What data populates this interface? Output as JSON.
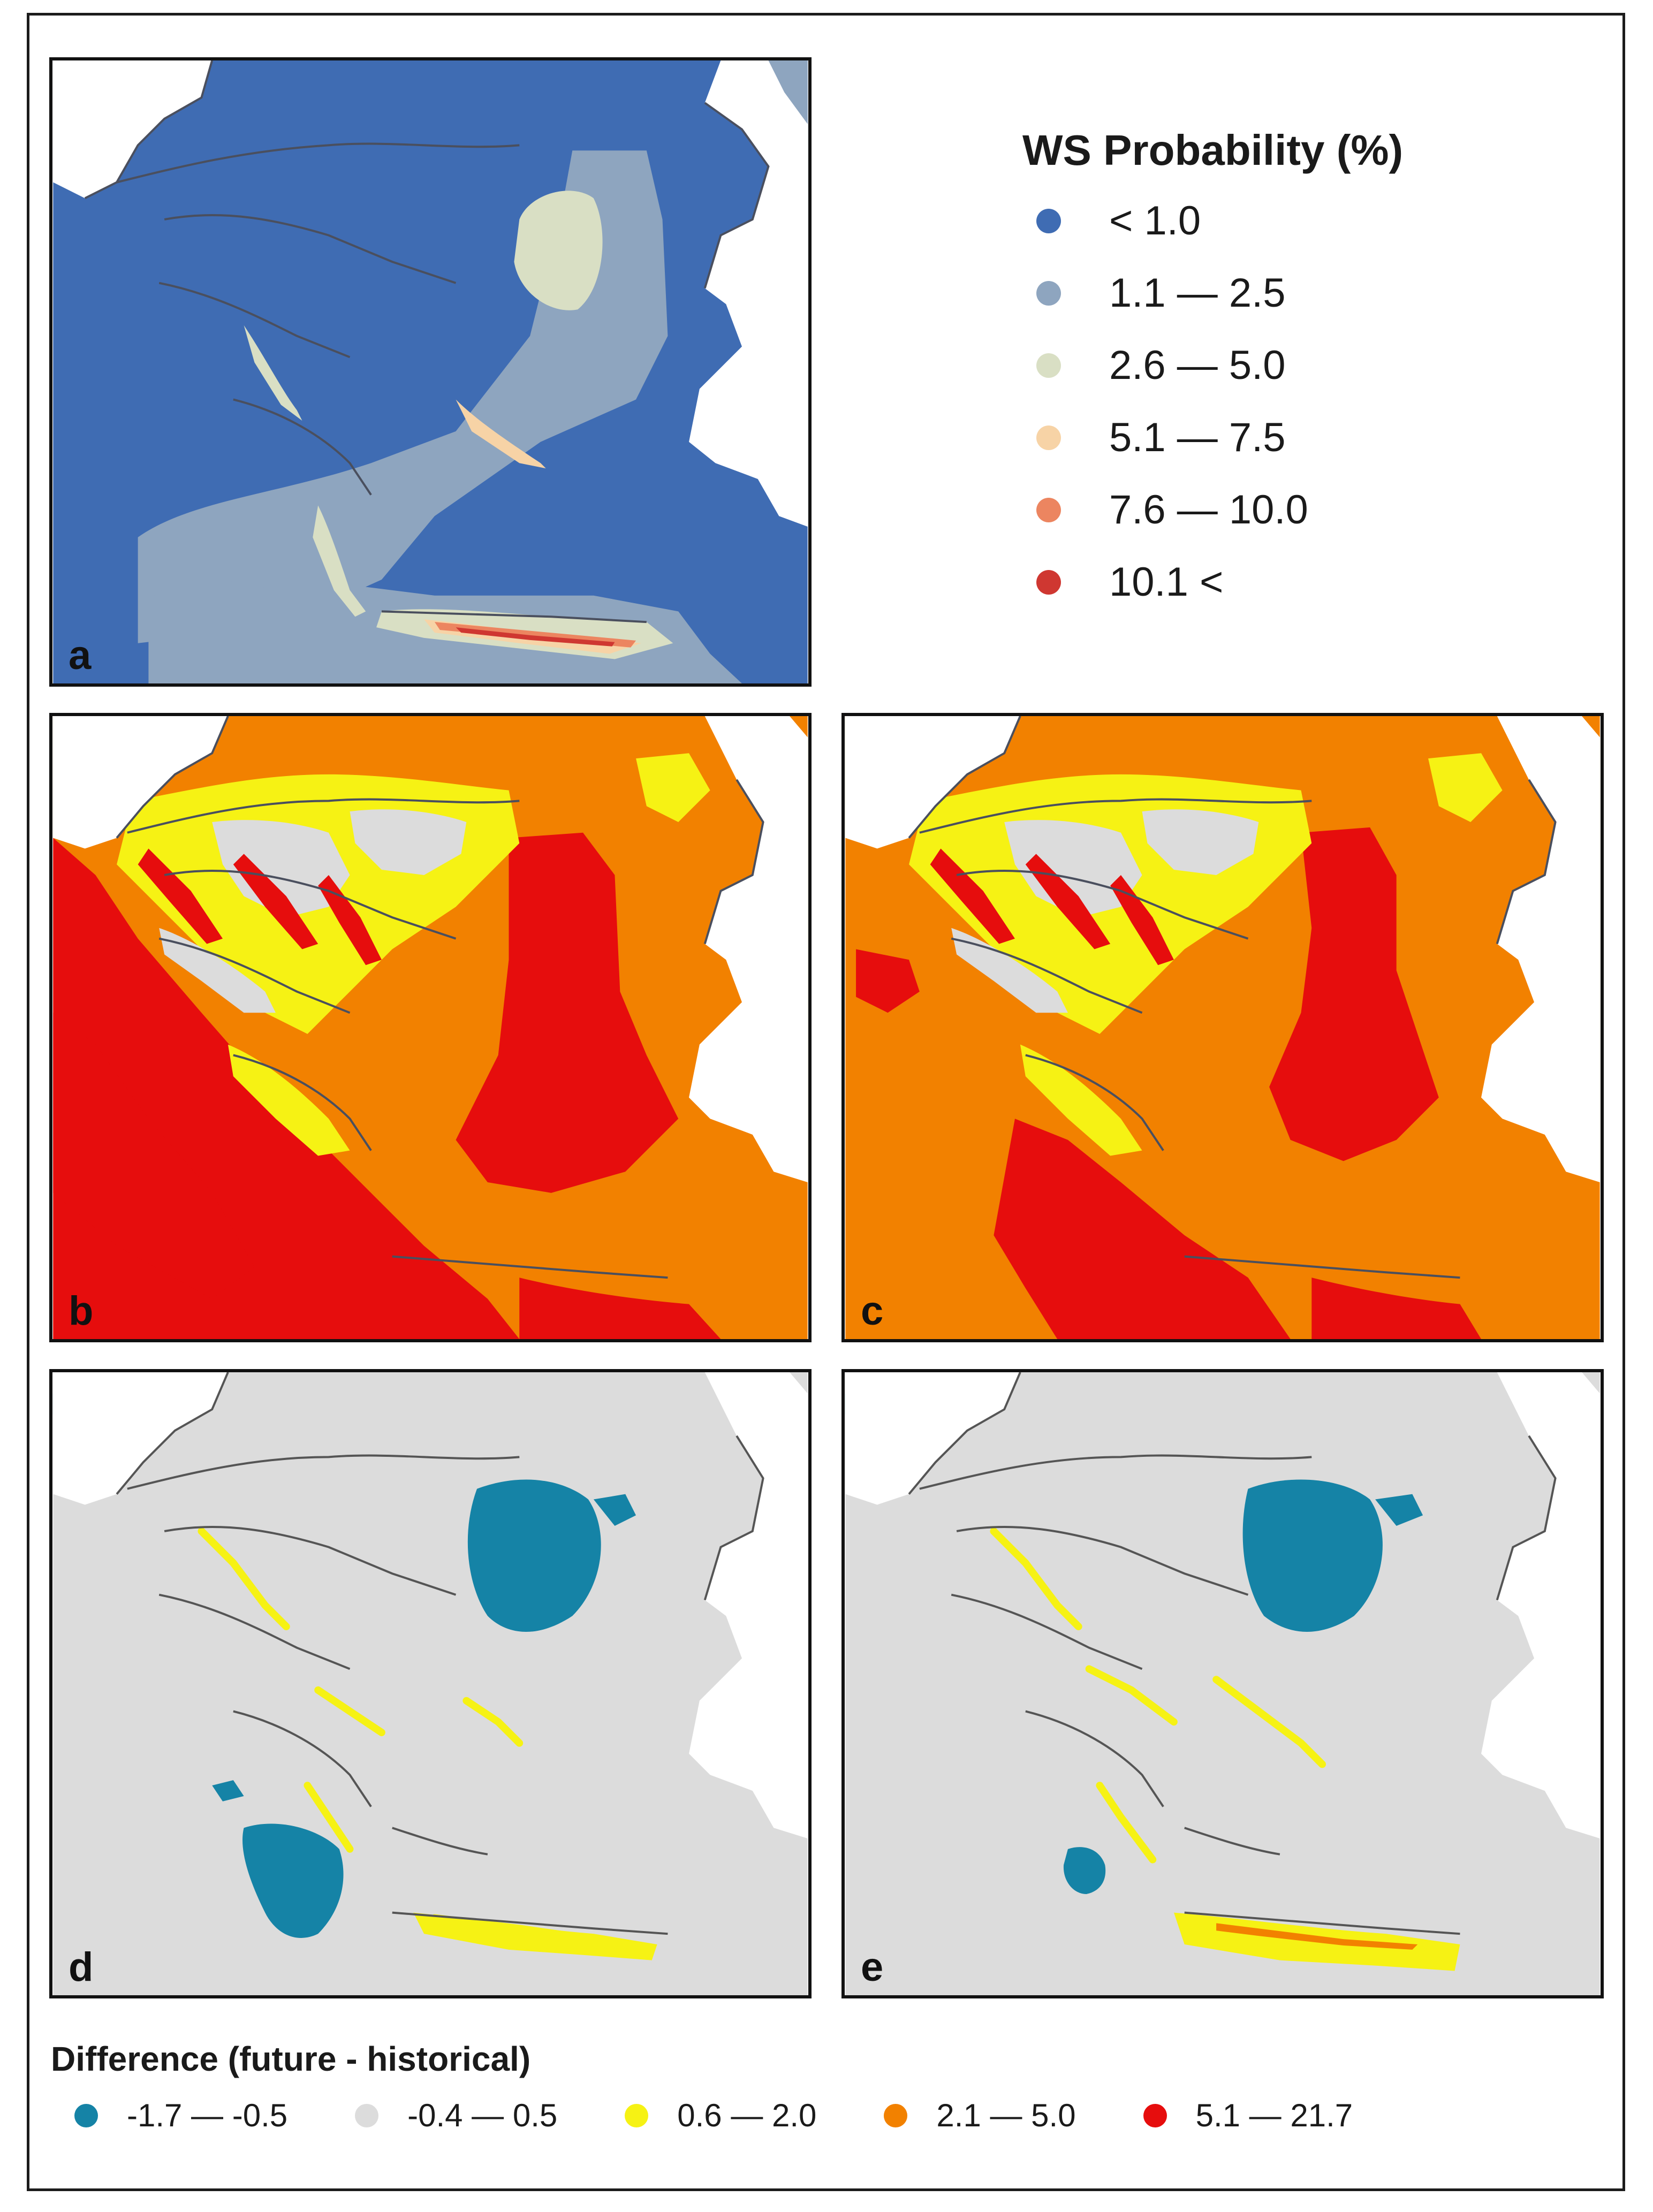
{
  "top_legend": {
    "title": "WS Probability (%)",
    "items": [
      {
        "label": "< 1.0",
        "color": "#3f6cb3"
      },
      {
        "label": "1.1 — 2.5",
        "color": "#8ea5bf"
      },
      {
        "label": "2.6 — 5.0",
        "color": "#d9dfc4"
      },
      {
        "label": "5.1 — 7.5",
        "color": "#f7d3a6"
      },
      {
        "label": "7.6 — 10.0",
        "color": "#ec8560"
      },
      {
        "label": "10.1 <",
        "color": "#cf3731"
      }
    ]
  },
  "bottom_legend": {
    "title": "Difference (future - historical)",
    "items": [
      {
        "label": "-1.7 — -0.5",
        "color": "#1583a6"
      },
      {
        "label": "-0.4 — 0.5",
        "color": "#dcdcdc"
      },
      {
        "label": "0.6 — 2.0",
        "color": "#f6f214"
      },
      {
        "label": "2.1 — 5.0",
        "color": "#f28100"
      },
      {
        "label": "5.1 — 21.7",
        "color": "#e60d0d"
      }
    ]
  },
  "panels": [
    {
      "letter": "a",
      "scheme": "probability"
    },
    {
      "letter": "b",
      "scheme": "future-hazard"
    },
    {
      "letter": "c",
      "scheme": "future-hazard"
    },
    {
      "letter": "d",
      "scheme": "difference"
    },
    {
      "letter": "e",
      "scheme": "difference"
    }
  ],
  "colors": {
    "land_outside": "#ffffff",
    "border_line": "#555555"
  }
}
